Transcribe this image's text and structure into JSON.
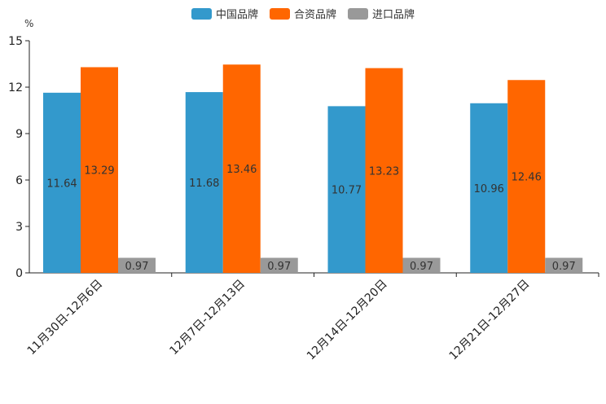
{
  "chart_data": {
    "type": "bar",
    "unit_label": "%",
    "categories": [
      "11月30日-12月6日",
      "12月7日-12月13日",
      "12月14日-12月20日",
      "12月21日-12月27日"
    ],
    "series": [
      {
        "name": "中国品牌",
        "color": "#3399cc",
        "values": [
          11.64,
          11.68,
          10.77,
          10.96
        ],
        "labels": [
          "11.64",
          "11.68",
          "10.77",
          "10.96"
        ]
      },
      {
        "name": "合资品牌",
        "color": "#ff6600",
        "values": [
          13.29,
          13.46,
          13.23,
          12.46
        ],
        "labels": [
          "13.29",
          "13.46",
          "13.23",
          "12.46"
        ]
      },
      {
        "name": "进口品牌",
        "color": "#999999",
        "values": [
          0.97,
          0.97,
          0.97,
          0.97
        ],
        "labels": [
          "0.97",
          "0.97",
          "0.97",
          "0.97"
        ]
      }
    ],
    "ylim": [
      0,
      15
    ],
    "yticks": [
      "0",
      "3",
      "6",
      "9",
      "12",
      "15"
    ],
    "legend_position": "top-center"
  }
}
